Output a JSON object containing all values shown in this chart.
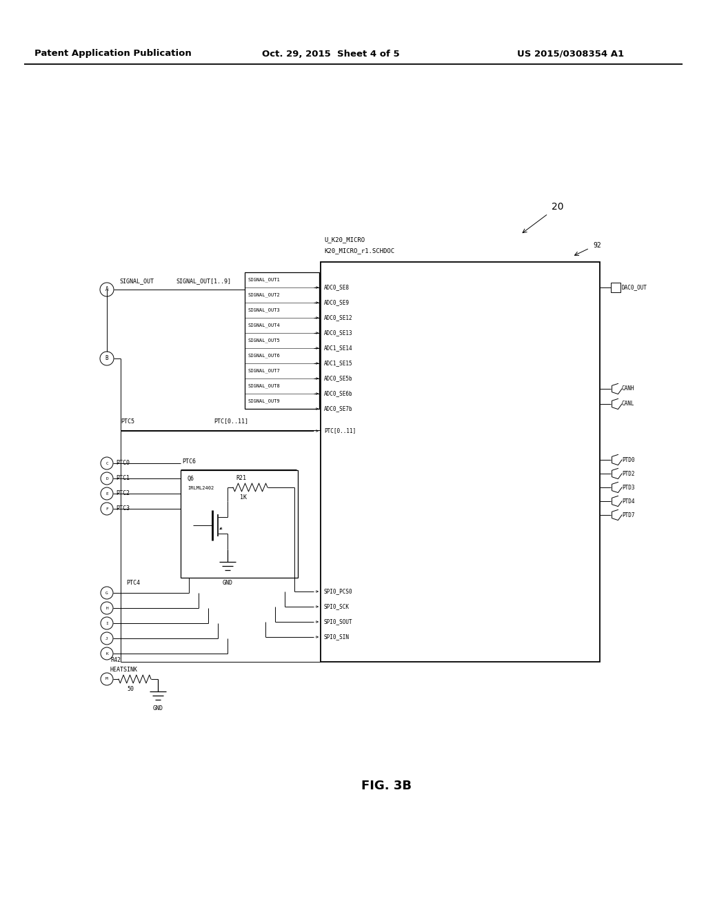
{
  "bg_color": "#ffffff",
  "header_left": "Patent Application Publication",
  "header_mid": "Oct. 29, 2015  Sheet 4 of 5",
  "header_right": "US 2015/0308354 A1",
  "fig_label": "FIG. 3B",
  "ref_20": "20",
  "ref_92": "92",
  "chip_label1": "U_K20_MICRO",
  "chip_label2": "K20_MICRO_r1.SCHDOC",
  "signal_out_label": "SIGNAL_OUT",
  "signal_out19_label": "SIGNAL_OUT[1..9]",
  "ptc_bus_label": "PTC[0..11]",
  "ptc5_label": "PTC5",
  "ptc6_label": "PTC6",
  "ptc0_label": "PTC0",
  "ptc1_label": "PTC1",
  "ptc2_label": "PTC2",
  "ptc3_label": "PTC3",
  "ptc4_label": "PTC4",
  "q6_label": "Q6",
  "q6_part": "IRLML2402",
  "r21_label": "R21",
  "r21_val": "1K",
  "gnd_label": "GND",
  "r42_label": "R42",
  "heatsink_label": "HEATSINK",
  "r42_val": "50",
  "gnd2_label": "GND",
  "left_signals": [
    "SIGNAL_OUT1",
    "SIGNAL_OUT2",
    "SIGNAL_OUT3",
    "SIGNAL_OUT4",
    "SIGNAL_OUT5",
    "SIGNAL_OUT6",
    "SIGNAL_OUT7",
    "SIGNAL_OUT8",
    "SIGNAL_OUT9"
  ],
  "adc_signals": [
    "ADC0_SE8",
    "ADC0_SE9",
    "ADC0_SE12",
    "ADC0_SE13",
    "ADC1_SE14",
    "ADC1_SE15",
    "ADC0_SE5b",
    "ADC0_SE6b",
    "ADC0_SE7b"
  ],
  "dac_label": "DAC0_OUT",
  "canh_label": "CANH",
  "canl_label": "CANL",
  "ptc_right_label": "PTC[0..11]",
  "ptd_labels": [
    "PTD0",
    "PTD2",
    "PTD3",
    "PTD4",
    "PTD7"
  ],
  "spi_labels": [
    "SPI0_PCS0",
    "SPI0_SCK",
    "SPI0_SOUT",
    "SPI0_SIN"
  ],
  "conn_A": "A",
  "conn_B": "B",
  "conn_CDEF": [
    "C",
    "D",
    "E",
    "F"
  ],
  "conn_GHIJK": [
    "G",
    "H",
    "I",
    "J",
    "K"
  ],
  "conn_M": "M"
}
